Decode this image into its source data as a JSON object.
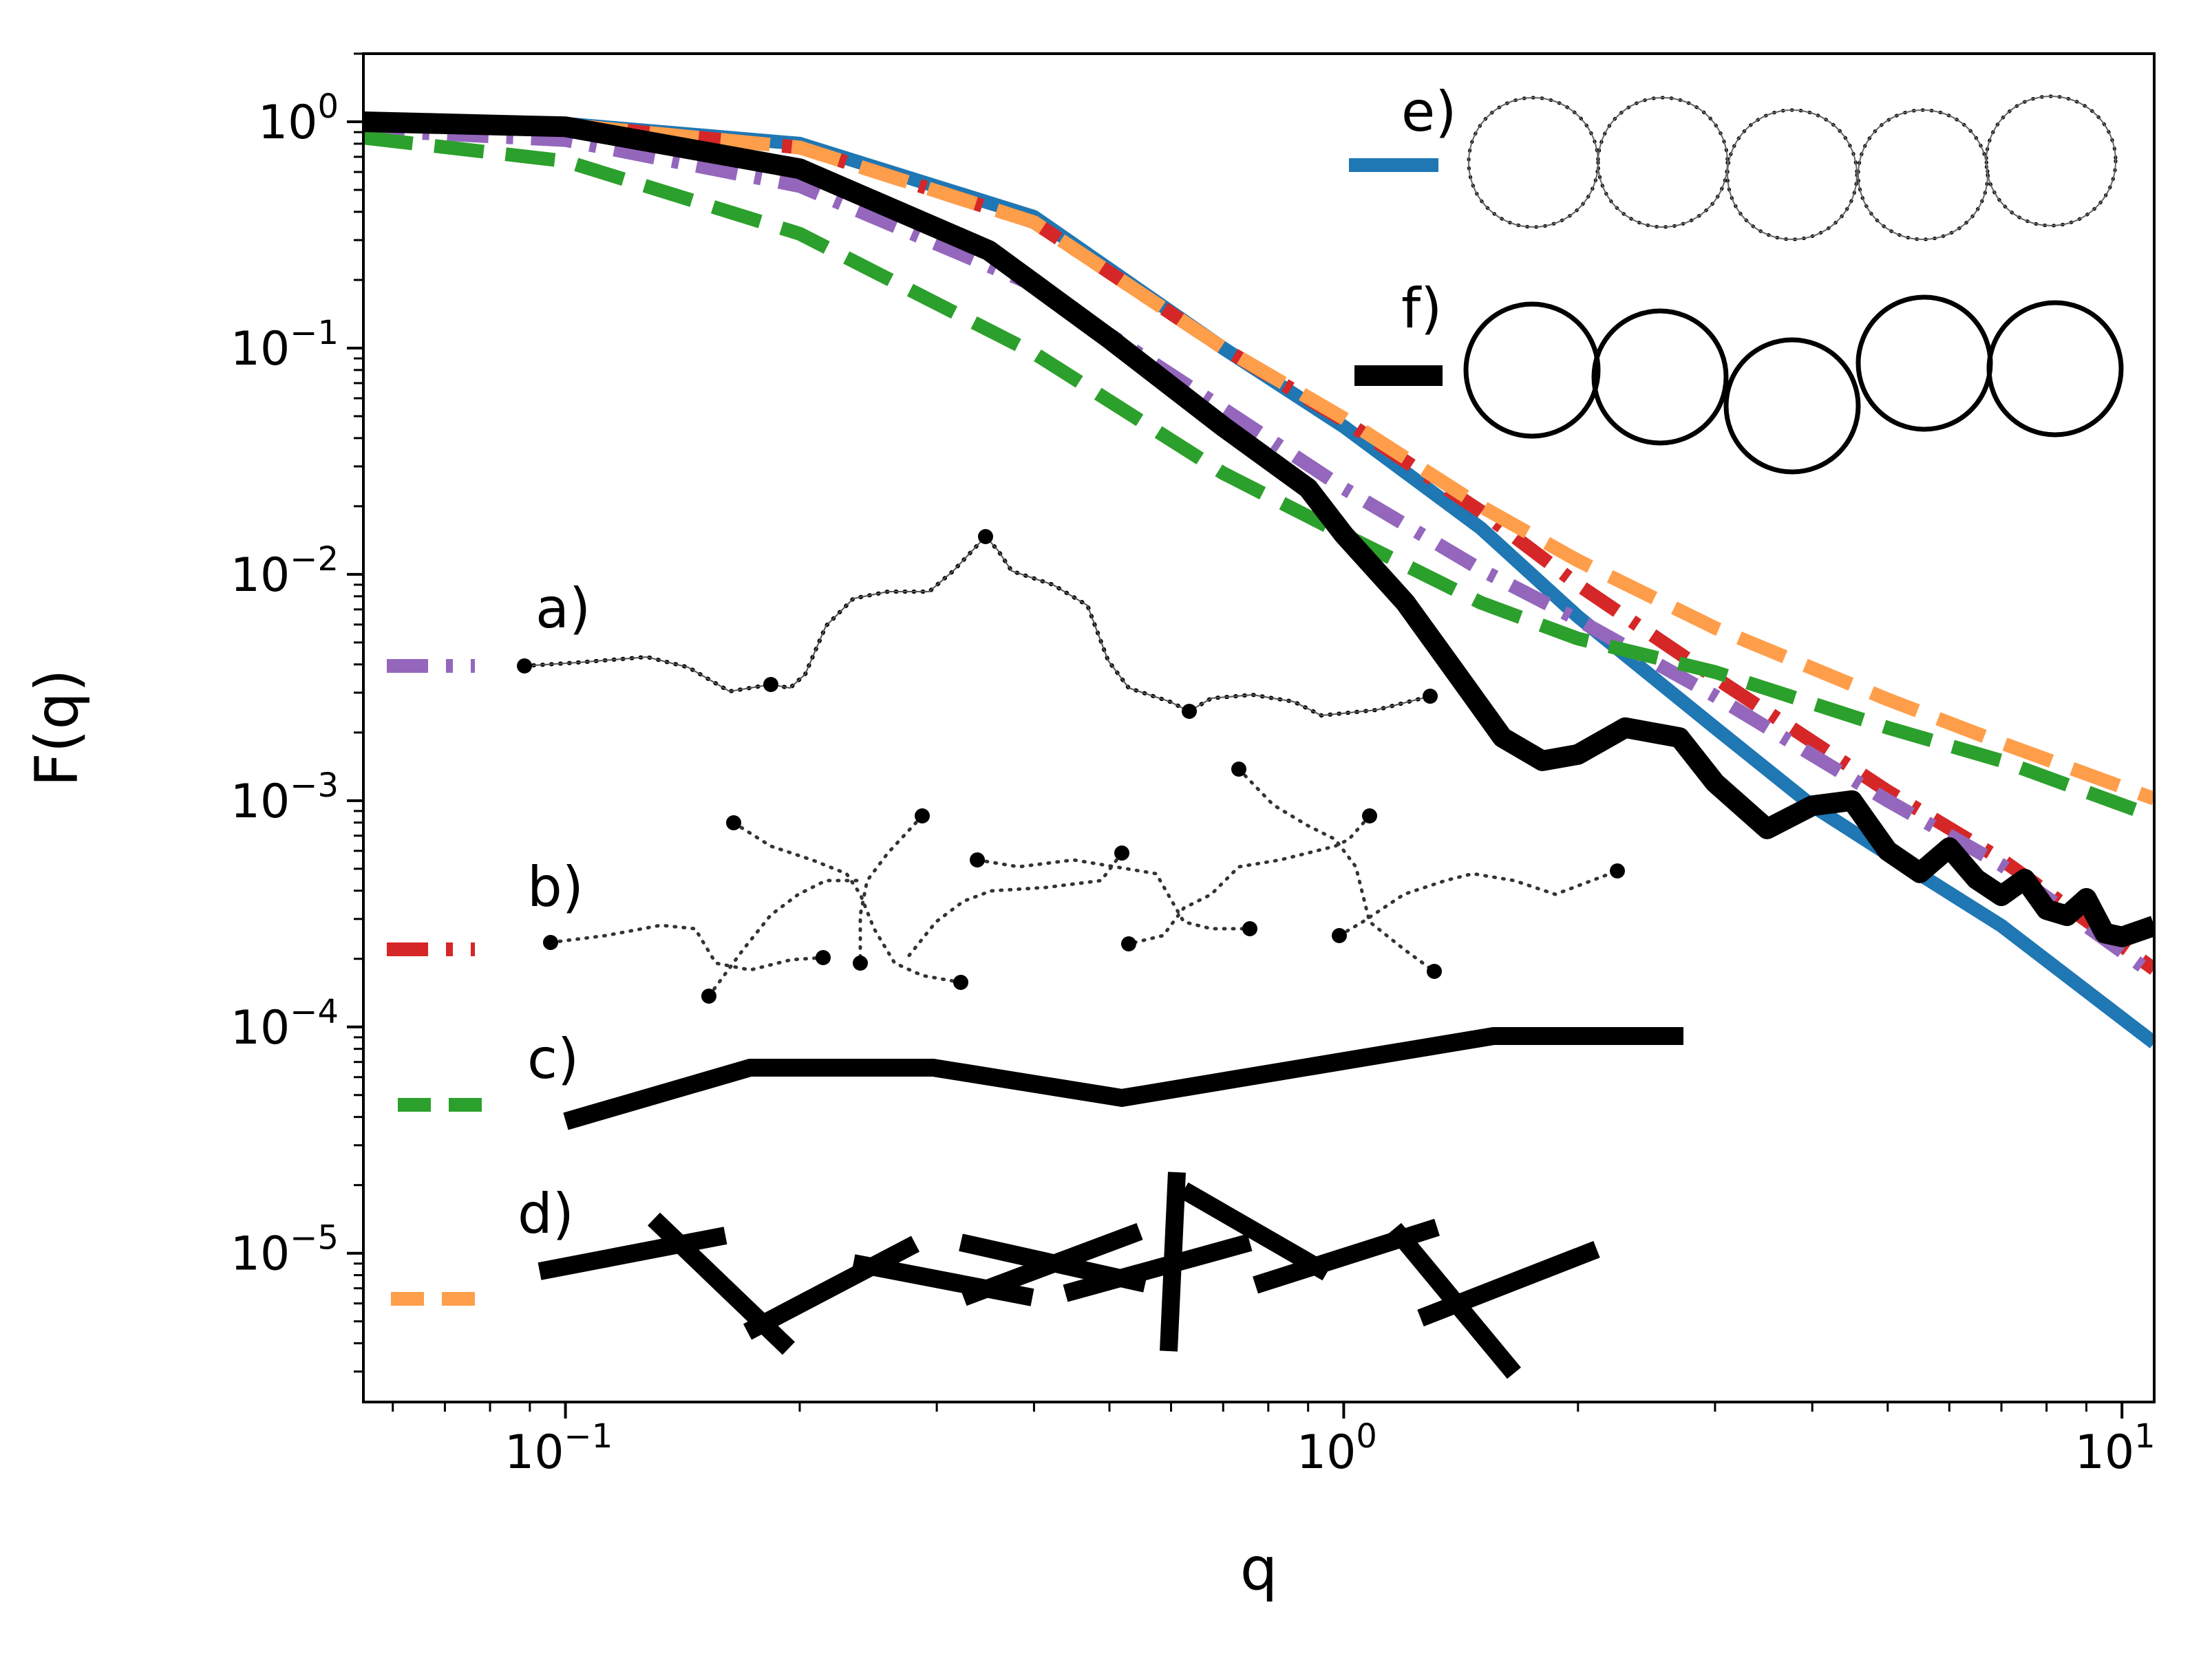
{
  "chart_data": {
    "type": "line",
    "title": "",
    "xlabel": "q",
    "ylabel": "F(q)",
    "xscale": "log",
    "yscale": "log",
    "xlim": [
      0.055,
      11
    ],
    "ylim": [
      2.2e-06,
      2.0
    ],
    "grid": false,
    "x_ticks": [
      {
        "value": 0.1,
        "base": "10",
        "exp": "−1"
      },
      {
        "value": 1,
        "base": "10",
        "exp": "0"
      },
      {
        "value": 10,
        "base": "10",
        "exp": "1"
      }
    ],
    "y_ticks": [
      {
        "value": 1,
        "base": "10",
        "exp": "0"
      },
      {
        "value": 0.1,
        "base": "10",
        "exp": "−1"
      },
      {
        "value": 0.01,
        "base": "10",
        "exp": "−2"
      },
      {
        "value": 0.001,
        "base": "10",
        "exp": "−3"
      },
      {
        "value": 0.0001,
        "base": "10",
        "exp": "−4"
      },
      {
        "value": 1e-05,
        "base": "10",
        "exp": "−5"
      }
    ],
    "series": [
      {
        "key": "e",
        "color": "#1f77b4",
        "style": "solid",
        "x": [
          0.055,
          0.1,
          0.2,
          0.4,
          0.7,
          1.0,
          1.5,
          2.0,
          3.0,
          4.0,
          5.0,
          7.0,
          11.0
        ],
        "y": [
          1.0,
          0.98,
          0.8,
          0.38,
          0.1,
          0.045,
          0.016,
          0.0065,
          0.0021,
          0.00095,
          0.00058,
          0.00028,
          8.5e-05
        ]
      },
      {
        "key": "b",
        "color": "#d62728",
        "style": "dashdot",
        "x": [
          0.055,
          0.1,
          0.2,
          0.4,
          0.7,
          1.0,
          1.5,
          2.0,
          3.0,
          5.0,
          7.0,
          11.0
        ],
        "y": [
          1.0,
          0.97,
          0.77,
          0.36,
          0.1,
          0.048,
          0.019,
          0.009,
          0.0035,
          0.0011,
          0.00055,
          0.00018
        ]
      },
      {
        "key": "d",
        "color": "#ff9e4a",
        "style": "dashed",
        "x": [
          0.055,
          0.1,
          0.2,
          0.4,
          0.7,
          1.0,
          1.5,
          2.0,
          3.0,
          5.0,
          7.0,
          11.0
        ],
        "y": [
          1.0,
          0.97,
          0.77,
          0.36,
          0.1,
          0.049,
          0.02,
          0.0115,
          0.0058,
          0.0028,
          0.0018,
          0.00102
        ]
      },
      {
        "key": "a",
        "color": "#9467bd",
        "style": "dashdot",
        "x": [
          0.055,
          0.1,
          0.2,
          0.4,
          0.7,
          1.0,
          1.5,
          2.0,
          3.0,
          5.0,
          7.0,
          11.0
        ],
        "y": [
          0.92,
          0.83,
          0.52,
          0.19,
          0.054,
          0.024,
          0.0105,
          0.0063,
          0.0029,
          0.001,
          0.00052,
          0.00017
        ]
      },
      {
        "key": "c",
        "color": "#2ca02c",
        "style": "dashed",
        "x": [
          0.055,
          0.1,
          0.2,
          0.4,
          0.7,
          1.0,
          1.5,
          2.0,
          3.0,
          5.0,
          7.0,
          11.0
        ],
        "y": [
          0.85,
          0.67,
          0.32,
          0.095,
          0.028,
          0.015,
          0.0075,
          0.0052,
          0.0037,
          0.0021,
          0.0015,
          0.00085
        ]
      },
      {
        "key": "f",
        "color": "#000000",
        "style": "solid",
        "x": [
          0.055,
          0.1,
          0.2,
          0.35,
          0.5,
          0.7,
          0.9,
          1.0,
          1.2,
          1.4,
          1.6,
          1.8,
          2.0,
          2.3,
          2.7,
          3.0,
          3.5,
          4.0,
          4.5,
          5.0,
          5.5,
          6.0,
          6.5,
          7.0,
          7.5,
          8.0,
          8.5,
          9.0,
          9.5,
          10.0,
          11.0
        ],
        "y": [
          1.0,
          0.95,
          0.62,
          0.27,
          0.11,
          0.045,
          0.024,
          0.015,
          0.0075,
          0.0036,
          0.0019,
          0.0015,
          0.0016,
          0.0021,
          0.0019,
          0.0012,
          0.00075,
          0.00095,
          0.001,
          0.0006,
          0.00048,
          0.00062,
          0.00045,
          0.00038,
          0.00045,
          0.00033,
          0.00031,
          0.00037,
          0.00026,
          0.00025,
          0.00028
        ]
      }
    ],
    "legend": [
      {
        "key": "a",
        "label": "a)"
      },
      {
        "key": "b",
        "label": "b)"
      },
      {
        "key": "c",
        "label": "c)"
      },
      {
        "key": "d",
        "label": "d)"
      },
      {
        "key": "e",
        "label": "e)"
      },
      {
        "key": "f",
        "label": "f)"
      }
    ]
  }
}
